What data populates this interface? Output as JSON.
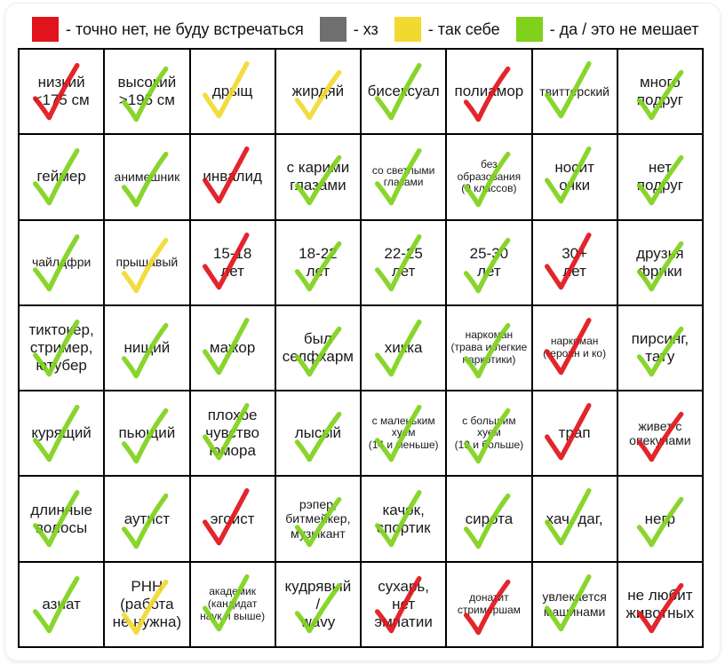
{
  "colors": {
    "red": "#e0141a",
    "gray": "#6f6f6f",
    "yellow": "#f2d930",
    "green": "#7fd11b"
  },
  "legend": [
    {
      "color": "red",
      "text": "- точно нет, не буду встречаться"
    },
    {
      "color": "gray",
      "text": "- хз"
    },
    {
      "color": "yellow",
      "text": "- так себе"
    },
    {
      "color": "green",
      "text": "- да / это не мешает"
    }
  ],
  "cells": [
    {
      "label": "низкий\n<175 см",
      "mark": "red",
      "size": "n",
      "icon": "check-icon"
    },
    {
      "label": "высокий\n>195 см",
      "mark": "green",
      "size": "n",
      "icon": "check-icon"
    },
    {
      "label": "дрыщ",
      "mark": "yellow",
      "size": "n",
      "icon": "check-icon"
    },
    {
      "label": "жирдяй",
      "mark": "yellow",
      "size": "n",
      "icon": "check-icon"
    },
    {
      "label": "бисексуал",
      "mark": "green",
      "size": "n",
      "icon": "check-icon"
    },
    {
      "label": "полиамор",
      "mark": "red",
      "size": "n",
      "icon": "check-icon"
    },
    {
      "label": "твиттерский",
      "mark": "green",
      "size": "sm",
      "icon": "check-icon"
    },
    {
      "label": "много\nподруг",
      "mark": "green",
      "size": "n",
      "icon": "check-icon"
    },
    {
      "label": "геймер",
      "mark": "green",
      "size": "n",
      "icon": "check-icon"
    },
    {
      "label": "анимешник",
      "mark": "green",
      "size": "sm",
      "icon": "check-icon"
    },
    {
      "label": "инвалид",
      "mark": "red",
      "size": "n",
      "icon": "check-icon"
    },
    {
      "label": "с карими\nглазами",
      "mark": "green",
      "size": "n",
      "icon": "check-icon"
    },
    {
      "label": "со светлыми\nглазами",
      "mark": "green",
      "size": "xs",
      "icon": "check-icon"
    },
    {
      "label": "без\nобразования\n(9 классов)",
      "mark": "green",
      "size": "xs",
      "icon": "check-icon"
    },
    {
      "label": "носит\nочки",
      "mark": "green",
      "size": "n",
      "icon": "check-icon"
    },
    {
      "label": "нет\nподруг",
      "mark": "green",
      "size": "n",
      "icon": "check-icon"
    },
    {
      "label": "чайлдфри",
      "mark": "green",
      "size": "sm",
      "icon": "check-icon"
    },
    {
      "label": "прышавый",
      "mark": "yellow",
      "size": "sm",
      "icon": "check-icon"
    },
    {
      "label": "15-18\nлет",
      "mark": "red",
      "size": "n",
      "icon": "check-icon"
    },
    {
      "label": "18-22\nлет",
      "mark": "green",
      "size": "n",
      "icon": "check-icon"
    },
    {
      "label": "22-25\nлет",
      "mark": "green",
      "size": "n",
      "icon": "check-icon"
    },
    {
      "label": "25-30\nлет",
      "mark": "green",
      "size": "n",
      "icon": "check-icon"
    },
    {
      "label": "30+\nлет",
      "mark": "red",
      "size": "n",
      "icon": "check-icon"
    },
    {
      "label": "друзья\nфрики",
      "mark": "green",
      "size": "n",
      "icon": "check-icon"
    },
    {
      "label": "тиктокер,\nстример,\nютубер",
      "mark": "green",
      "size": "n",
      "icon": "check-icon"
    },
    {
      "label": "нищий",
      "mark": "green",
      "size": "n",
      "icon": "check-icon"
    },
    {
      "label": "мажор",
      "mark": "green",
      "size": "n",
      "icon": "check-icon"
    },
    {
      "label": "был\nселфхарм",
      "mark": "green",
      "size": "n",
      "icon": "check-icon"
    },
    {
      "label": "хикка",
      "mark": "green",
      "size": "n",
      "icon": "check-icon"
    },
    {
      "label": "наркоман\n(трава и легкие\nнаркотики)",
      "mark": "green",
      "size": "xs",
      "icon": "check-icon"
    },
    {
      "label": "наркоман\n(героин и ко)",
      "mark": "red",
      "size": "xs",
      "icon": "check-icon"
    },
    {
      "label": "пирсинг,\nтату",
      "mark": "green",
      "size": "n",
      "icon": "check-icon"
    },
    {
      "label": "курящий",
      "mark": "green",
      "size": "n",
      "icon": "check-icon"
    },
    {
      "label": "пьющий",
      "mark": "green",
      "size": "n",
      "icon": "check-icon"
    },
    {
      "label": "плохое\nчувство\nюмора",
      "mark": "green",
      "size": "n",
      "icon": "check-icon"
    },
    {
      "label": "лысый",
      "mark": "green",
      "size": "n",
      "icon": "check-icon"
    },
    {
      "label": "с маленьким\nхуем\n(14 и меньше)",
      "mark": "green",
      "size": "xs",
      "icon": "check-icon"
    },
    {
      "label": "с большим хуем\n(19 и больше)",
      "mark": "green",
      "size": "xs",
      "icon": "check-icon"
    },
    {
      "label": "трап",
      "mark": "red",
      "size": "n",
      "icon": "check-icon"
    },
    {
      "label": "живет с\nопекунами",
      "mark": "red",
      "size": "sm",
      "icon": "check-icon"
    },
    {
      "label": "длинные\nволосы",
      "mark": "green",
      "size": "n",
      "icon": "check-icon"
    },
    {
      "label": "аутист",
      "mark": "green",
      "size": "n",
      "icon": "check-icon"
    },
    {
      "label": "эгоист",
      "mark": "red",
      "size": "n",
      "icon": "check-icon"
    },
    {
      "label": "рэпер,\nбитмейкер,\nмузыкант",
      "mark": "green",
      "size": "sm",
      "icon": "check-icon"
    },
    {
      "label": "качок,\nспортик",
      "mark": "green",
      "size": "n",
      "icon": "check-icon"
    },
    {
      "label": "сирота",
      "mark": "green",
      "size": "n",
      "icon": "check-icon"
    },
    {
      "label": "хач, даг,",
      "mark": "green",
      "size": "n",
      "icon": "check-icon"
    },
    {
      "label": "негр",
      "mark": "green",
      "size": "n",
      "icon": "check-icon"
    },
    {
      "label": "азиат",
      "mark": "green",
      "size": "n",
      "icon": "check-icon"
    },
    {
      "label": "РНН\n(работа\nне нужна)",
      "mark": "yellow",
      "size": "n",
      "icon": "check-icon"
    },
    {
      "label": "академик\n(кандидат\nнаук и выше)",
      "mark": "green",
      "size": "xs",
      "icon": "check-icon"
    },
    {
      "label": "кудрявый\n/\nwavy",
      "mark": "green",
      "size": "n",
      "icon": "check-icon"
    },
    {
      "label": "сухарь,\nнет\nэмпатии",
      "mark": "red",
      "size": "n",
      "icon": "check-icon"
    },
    {
      "label": "донатит\nстримершам",
      "mark": "red",
      "size": "xs",
      "icon": "check-icon"
    },
    {
      "label": "увлекается\nмашинами",
      "mark": "green",
      "size": "sm",
      "icon": "check-icon"
    },
    {
      "label": "не любит\nживотных",
      "mark": "red",
      "size": "n",
      "icon": "check-icon"
    }
  ]
}
